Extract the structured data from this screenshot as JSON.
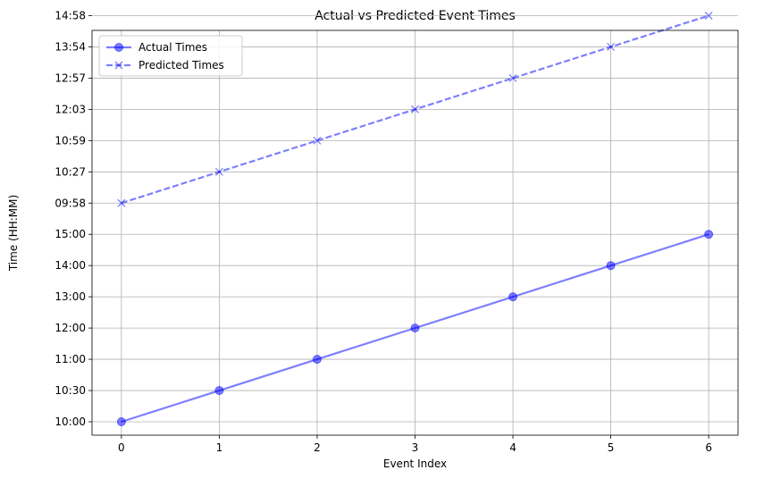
{
  "chart_data": {
    "type": "line",
    "title": "Actual vs Predicted Event Times",
    "xlabel": "Event Index",
    "ylabel": "Time (HH:MM)",
    "x": [
      0,
      1,
      2,
      3,
      4,
      5,
      6
    ],
    "xlim": [
      -0.3,
      6.3
    ],
    "y_categories": [
      "10:00",
      "10:30",
      "11:00",
      "12:00",
      "13:00",
      "14:00",
      "15:00",
      "09:58",
      "10:27",
      "10:59",
      "12:03",
      "12:57",
      "13:54",
      "14:58"
    ],
    "series": [
      {
        "name": "Actual Times",
        "values": [
          "10:00",
          "10:30",
          "11:00",
          "12:00",
          "13:00",
          "14:00",
          "15:00"
        ],
        "color": "#0000ff",
        "style": "solid",
        "marker": "circle"
      },
      {
        "name": "Predicted Times",
        "values": [
          "09:58",
          "10:27",
          "10:59",
          "12:03",
          "12:57",
          "13:54",
          "14:58"
        ],
        "color": "#0000ff",
        "style": "dashed",
        "marker": "x"
      }
    ],
    "grid": true,
    "legend_position": "top-left"
  }
}
